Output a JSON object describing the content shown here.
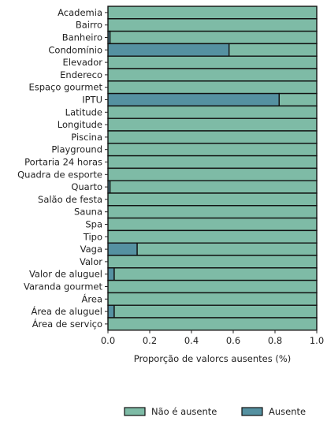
{
  "chart_data": {
    "type": "bar",
    "orientation": "horizontal",
    "stacked": true,
    "categories": [
      "Academia",
      "Bairro",
      "Banheiro",
      "Condomínio",
      "Elevador",
      "Endereco",
      "Espaço gourmet",
      "IPTU",
      "Latitude",
      "Longitude",
      "Piscina",
      "Playground",
      "Portaria 24 horas",
      "Quadra de esporte",
      "Quarto",
      "Salão de festa",
      "Sauna",
      "Spa",
      "Tipo",
      "Vaga",
      "Valor",
      "Valor de aluguel",
      "Varanda gourmet",
      "Área",
      "Área de aluguel",
      "Área de serviço"
    ],
    "series": [
      {
        "name": "Ausente",
        "color": "#5591a1",
        "values": [
          0,
          0,
          0.01,
          0.58,
          0,
          0,
          0,
          0.82,
          0,
          0,
          0,
          0,
          0,
          0,
          0.01,
          0,
          0,
          0,
          0,
          0.14,
          0,
          0.03,
          0,
          0,
          0.03,
          0
        ]
      },
      {
        "name": "Não é ausente",
        "color": "#7ebba6",
        "values": [
          1,
          1,
          0.99,
          0.42,
          1,
          1,
          1,
          0.18,
          1,
          1,
          1,
          1,
          1,
          1,
          0.99,
          1,
          1,
          1,
          1,
          0.86,
          1,
          0.97,
          1,
          1,
          0.97,
          1
        ]
      }
    ],
    "xlabel": "Proporção de valorcs ausentes (%)",
    "ylabel": "",
    "xlim": [
      0,
      1
    ],
    "xticks": [
      "0.0",
      "0.2",
      "0.4",
      "0.6",
      "0.8",
      "1.0"
    ],
    "grid": false,
    "legend": {
      "placement": "bottom-right",
      "entries": [
        "Não é ausente",
        "Ausente"
      ]
    }
  }
}
